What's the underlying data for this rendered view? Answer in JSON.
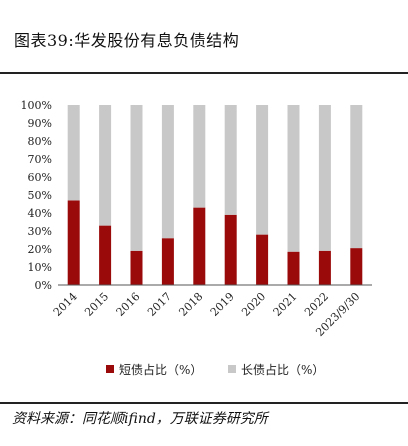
{
  "header": {
    "title": "图表39:华发股份有息负债结构"
  },
  "footer": {
    "source": "资料来源：同花顺ifind，万联证券研究所"
  },
  "colors": {
    "short_term": "#9b0a0a",
    "long_term": "#c8c8c8"
  },
  "chart_data": {
    "type": "bar",
    "stacked": true,
    "title": "",
    "xlabel": "",
    "ylabel": "",
    "ylim": [
      0,
      100
    ],
    "y_ticks": [
      "0%",
      "10%",
      "20%",
      "30%",
      "40%",
      "50%",
      "60%",
      "70%",
      "80%",
      "90%",
      "100%"
    ],
    "categories": [
      "2014",
      "2015",
      "2016",
      "2017",
      "2018",
      "2019",
      "2020",
      "2021",
      "2022",
      "2023/9/30"
    ],
    "series": [
      {
        "name": "短债占比（%）",
        "values": [
          47,
          33,
          19,
          26,
          43,
          39,
          28,
          18.5,
          19,
          20.5
        ]
      },
      {
        "name": "长债占比（%）",
        "values": [
          53,
          67,
          81,
          74,
          57,
          61,
          72,
          81.5,
          81,
          79.5
        ]
      }
    ],
    "legend": "bottom",
    "grid": false
  }
}
